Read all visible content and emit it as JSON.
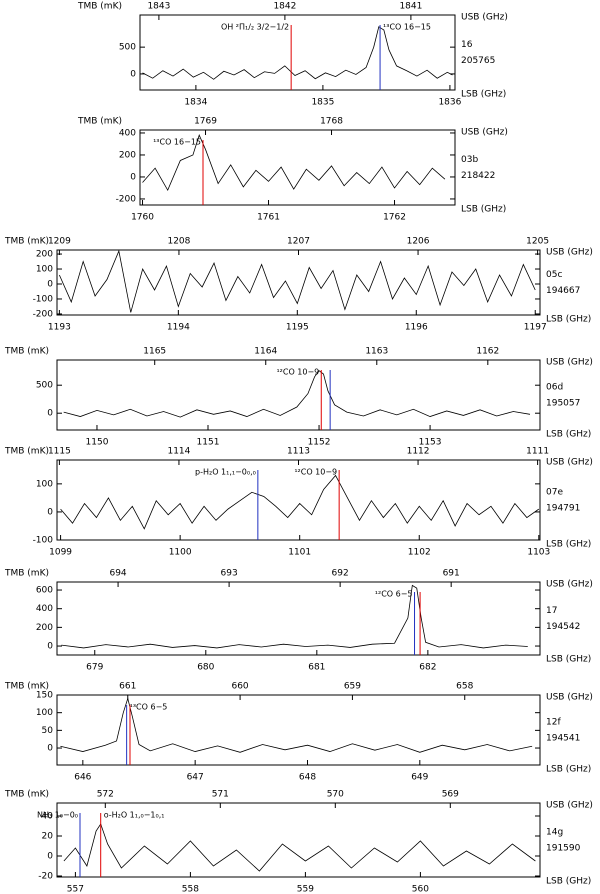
{
  "chart_data": [
    {
      "type": "line",
      "ylabel": "TMB (mK)",
      "x2label": "USB (GHz)",
      "xlabel": "LSB (GHz)",
      "id": "16",
      "obsid": "205765",
      "xlim": [
        1833.56,
        1836.04
      ],
      "xticks": [
        1834,
        1835,
        1836
      ],
      "x2lim": [
        1843.15,
        1840.65
      ],
      "x2ticks": [
        1843,
        1842,
        1841
      ],
      "ylim": [
        -300,
        1100
      ],
      "yticks": [
        0,
        500
      ],
      "series": [
        {
          "color": "#000000",
          "x": [
            1833.58,
            1833.66,
            1833.74,
            1833.82,
            1833.9,
            1833.98,
            1834.06,
            1834.14,
            1834.22,
            1834.3,
            1834.38,
            1834.46,
            1834.54,
            1834.62,
            1834.7,
            1834.78,
            1834.86,
            1834.94,
            1835.02,
            1835.1,
            1835.18,
            1835.26,
            1835.34,
            1835.4,
            1835.44,
            1835.48,
            1835.52,
            1835.58,
            1835.66,
            1835.74,
            1835.82,
            1835.9,
            1835.98,
            1836.02
          ],
          "values": [
            20,
            -80,
            60,
            -40,
            90,
            -60,
            30,
            -100,
            50,
            -20,
            80,
            -70,
            40,
            10,
            150,
            -30,
            60,
            -90,
            20,
            -50,
            70,
            -10,
            120,
            500,
            880,
            820,
            450,
            150,
            60,
            -40,
            70,
            -80,
            30,
            -20
          ]
        }
      ],
      "markers": [
        {
          "label": "OH ²Π₁/₂ 3/2−1/2",
          "color": "#e00000",
          "x": 1834.75,
          "side": "left"
        },
        {
          "label": "¹³CO 16−15",
          "color": "#2030c0",
          "x": 1835.45,
          "side": "right"
        }
      ]
    },
    {
      "type": "line",
      "ylabel": "TMB (mK)",
      "x2label": "USB (GHz)",
      "xlabel": "LSB (GHz)",
      "id": "03b",
      "obsid": "218422",
      "xlim": [
        1759.98,
        1762.48
      ],
      "xticks": [
        1760,
        1761,
        1762
      ],
      "x2lim": [
        1769.52,
        1767.02
      ],
      "x2ticks": [
        1769,
        1768
      ],
      "ylim": [
        -255,
        427
      ],
      "yticks": [
        -200,
        0,
        200,
        400
      ],
      "series": [
        {
          "color": "#000000",
          "x": [
            1760.0,
            1760.1,
            1760.2,
            1760.3,
            1760.4,
            1760.45,
            1760.5,
            1760.6,
            1760.7,
            1760.8,
            1760.9,
            1761.0,
            1761.1,
            1761.2,
            1761.3,
            1761.4,
            1761.5,
            1761.6,
            1761.7,
            1761.8,
            1761.9,
            1762.0,
            1762.1,
            1762.2,
            1762.3,
            1762.4
          ],
          "values": [
            -50,
            80,
            -120,
            150,
            200,
            380,
            250,
            -60,
            110,
            -90,
            60,
            -40,
            90,
            -110,
            70,
            -30,
            100,
            -80,
            40,
            -60,
            90,
            -100,
            50,
            -70,
            80,
            -20
          ]
        }
      ],
      "markers": [
        {
          "label": "¹³CO 16−15",
          "color": "#e00000",
          "x": 1760.48,
          "side": "left"
        }
      ]
    },
    {
      "type": "line",
      "ylabel": "TMB (mK)",
      "x2label": "USB (GHz)",
      "xlabel": "LSB (GHz)",
      "id": "05c",
      "obsid": "194667",
      "xlim": [
        1192.98,
        1197.04
      ],
      "xticks": [
        1193,
        1194,
        1195,
        1196,
        1197
      ],
      "x2lim": [
        1209.02,
        1204.98
      ],
      "x2ticks": [
        1209,
        1208,
        1207,
        1206,
        1205
      ],
      "ylim": [
        -207,
        227
      ],
      "yticks": [
        -200,
        -100,
        0,
        100,
        200
      ],
      "series": [
        {
          "color": "#000000",
          "x": [
            1193.0,
            1193.1,
            1193.2,
            1193.3,
            1193.4,
            1193.5,
            1193.6,
            1193.7,
            1193.8,
            1193.9,
            1194.0,
            1194.1,
            1194.2,
            1194.3,
            1194.4,
            1194.5,
            1194.6,
            1194.7,
            1194.8,
            1194.9,
            1195.0,
            1195.1,
            1195.2,
            1195.3,
            1195.4,
            1195.5,
            1195.6,
            1195.7,
            1195.8,
            1195.9,
            1196.0,
            1196.1,
            1196.2,
            1196.3,
            1196.4,
            1196.5,
            1196.6,
            1196.7,
            1196.8,
            1196.9,
            1197.0
          ],
          "values": [
            60,
            -120,
            150,
            -80,
            30,
            220,
            -190,
            100,
            -40,
            120,
            -150,
            70,
            -20,
            140,
            -110,
            50,
            -60,
            130,
            -90,
            20,
            -130,
            110,
            -30,
            90,
            -170,
            60,
            -50,
            150,
            -100,
            40,
            -70,
            120,
            -140,
            80,
            -10,
            100,
            -120,
            60,
            -80,
            130,
            -40
          ]
        }
      ],
      "markers": []
    },
    {
      "type": "line",
      "ylabel": "TMB (mK)",
      "x2label": "USB (GHz)",
      "xlabel": "LSB (GHz)",
      "id": "06d",
      "obsid": "195057",
      "xlim": [
        1149.64,
        1153.99
      ],
      "xticks": [
        1150,
        1151,
        1152,
        1153
      ],
      "x2lim": [
        1165.88,
        1161.53
      ],
      "x2ticks": [
        1165,
        1164,
        1163,
        1162
      ],
      "ylim": [
        -300,
        950
      ],
      "yticks": [
        0,
        500
      ],
      "series": [
        {
          "color": "#000000",
          "x": [
            1149.7,
            1149.85,
            1150.0,
            1150.15,
            1150.3,
            1150.45,
            1150.6,
            1150.75,
            1150.9,
            1151.05,
            1151.2,
            1151.35,
            1151.5,
            1151.65,
            1151.8,
            1151.9,
            1151.96,
            1152.0,
            1152.04,
            1152.08,
            1152.14,
            1152.25,
            1152.4,
            1152.55,
            1152.7,
            1152.85,
            1153.0,
            1153.15,
            1153.3,
            1153.45,
            1153.6,
            1153.75,
            1153.9
          ],
          "values": [
            20,
            -60,
            50,
            -30,
            70,
            -50,
            30,
            -70,
            60,
            -20,
            40,
            -60,
            70,
            -40,
            110,
            350,
            650,
            760,
            700,
            400,
            150,
            20,
            -50,
            60,
            -30,
            70,
            -60,
            40,
            -40,
            60,
            -50,
            30,
            -20
          ]
        }
      ],
      "markers": [
        {
          "label": "¹²CO 10−9",
          "color": "#e00000",
          "x": 1152.02,
          "side": "left"
        },
        {
          "color": "#2030c0",
          "x": 1152.1
        }
      ]
    },
    {
      "type": "line",
      "ylabel": "TMB (mK)",
      "x2label": "USB (GHz)",
      "xlabel": "LSB (GHz)",
      "id": "07e",
      "obsid": "194791",
      "xlim": [
        1098.97,
        1103.01
      ],
      "xticks": [
        1099,
        1100,
        1101,
        1102,
        1103
      ],
      "x2lim": [
        1115.02,
        1110.98
      ],
      "x2ticks": [
        1115,
        1114,
        1113,
        1112,
        1111
      ],
      "ylim": [
        -100,
        185
      ],
      "yticks": [
        -100,
        0,
        100
      ],
      "series": [
        {
          "color": "#000000",
          "x": [
            1099.0,
            1099.1,
            1099.2,
            1099.3,
            1099.4,
            1099.5,
            1099.6,
            1099.7,
            1099.8,
            1099.9,
            1100.0,
            1100.1,
            1100.2,
            1100.3,
            1100.4,
            1100.5,
            1100.6,
            1100.7,
            1100.8,
            1100.9,
            1101.0,
            1101.1,
            1101.2,
            1101.3,
            1101.4,
            1101.5,
            1101.6,
            1101.7,
            1101.8,
            1101.9,
            1102.0,
            1102.1,
            1102.2,
            1102.3,
            1102.4,
            1102.5,
            1102.6,
            1102.7,
            1102.8,
            1102.9,
            1103.0
          ],
          "values": [
            10,
            -40,
            30,
            -20,
            50,
            -30,
            20,
            -60,
            40,
            -10,
            30,
            -40,
            20,
            -30,
            10,
            40,
            70,
            55,
            20,
            -20,
            30,
            -10,
            80,
            130,
            50,
            -30,
            40,
            -20,
            30,
            -40,
            20,
            -30,
            40,
            -50,
            30,
            -10,
            20,
            -40,
            30,
            -20,
            10
          ]
        }
      ],
      "markers": [
        {
          "label": "p-H₂O 1₁,₁−0₀,₀",
          "color": "#2030c0",
          "x": 1100.65,
          "side": "left"
        },
        {
          "label": "¹²CO 10−9",
          "color": "#e00000",
          "x": 1101.33,
          "side": "left"
        }
      ]
    },
    {
      "type": "line",
      "ylabel": "TMB (mK)",
      "x2label": "USB (GHz)",
      "xlabel": "LSB (GHz)",
      "id": "17",
      "obsid": "194542",
      "xlim": [
        678.66,
        683.01
      ],
      "xticks": [
        679,
        680,
        681,
        682
      ],
      "x2lim": [
        694.55,
        690.2
      ],
      "x2ticks": [
        694,
        693,
        692,
        691
      ],
      "ylim": [
        -96,
        686
      ],
      "yticks": [
        0,
        200,
        400,
        600
      ],
      "series": [
        {
          "color": "#000000",
          "x": [
            678.7,
            678.9,
            679.1,
            679.3,
            679.5,
            679.7,
            679.9,
            680.1,
            680.3,
            680.5,
            680.7,
            680.9,
            681.1,
            681.3,
            681.5,
            681.7,
            681.82,
            681.86,
            681.9,
            681.94,
            681.98,
            682.1,
            682.3,
            682.5,
            682.7,
            682.9
          ],
          "values": [
            10,
            -20,
            15,
            -10,
            20,
            -15,
            5,
            -20,
            15,
            -10,
            20,
            -5,
            10,
            -15,
            20,
            30,
            300,
            650,
            620,
            300,
            40,
            -10,
            15,
            -20,
            10,
            -5
          ]
        }
      ],
      "markers": [
        {
          "label": "¹²CO 6−5",
          "color": "#2030c0",
          "x": 681.88,
          "side": "left"
        },
        {
          "color": "#e00000",
          "x": 681.93
        }
      ]
    },
    {
      "type": "line",
      "ylabel": "TMB (mK)",
      "x2label": "USB (GHz)",
      "xlabel": "LSB (GHz)",
      "id": "12f",
      "obsid": "194541",
      "xlim": [
        645.77,
        650.07
      ],
      "xticks": [
        646,
        647,
        648,
        649
      ],
      "x2lim": [
        661.63,
        657.33
      ],
      "x2ticks": [
        661,
        660,
        659,
        658
      ],
      "ylim": [
        -48,
        150
      ],
      "yticks": [
        0,
        50,
        100,
        150
      ],
      "series": [
        {
          "color": "#000000",
          "x": [
            645.8,
            646.0,
            646.2,
            646.3,
            646.36,
            646.4,
            646.44,
            646.5,
            646.6,
            646.8,
            647.0,
            647.2,
            647.4,
            647.6,
            647.8,
            648.0,
            648.2,
            648.4,
            648.6,
            648.8,
            649.0,
            649.2,
            649.4,
            649.6,
            649.8,
            650.0
          ],
          "values": [
            5,
            -10,
            8,
            20,
            100,
            140,
            90,
            10,
            -8,
            12,
            -10,
            6,
            -12,
            10,
            -5,
            8,
            -10,
            12,
            -6,
            10,
            -12,
            8,
            -5,
            10,
            -8,
            5
          ]
        }
      ],
      "markers": [
        {
          "label": "¹³CO 6−5",
          "color": "#2030c0",
          "x": 646.39,
          "side": "right"
        },
        {
          "color": "#e00000",
          "x": 646.42
        }
      ]
    },
    {
      "type": "line",
      "ylabel": "TMB (mK)",
      "x2label": "USB (GHz)",
      "xlabel": "LSB (GHz)",
      "id": "14g",
      "obsid": "191590",
      "xlim": [
        556.84,
        561.04
      ],
      "xticks": [
        557,
        558,
        559,
        560
      ],
      "x2lim": [
        572.42,
        568.22
      ],
      "x2ticks": [
        572,
        571,
        570,
        569
      ],
      "ylim": [
        -21,
        53
      ],
      "yticks": [
        -20,
        0,
        20,
        40
      ],
      "series": [
        {
          "color": "#000000",
          "x": [
            556.9,
            557.0,
            557.1,
            557.18,
            557.22,
            557.28,
            557.4,
            557.6,
            557.8,
            558.0,
            558.2,
            558.4,
            558.6,
            558.8,
            559.0,
            559.2,
            559.4,
            559.6,
            559.8,
            560.0,
            560.2,
            560.4,
            560.6,
            560.8,
            561.0
          ],
          "values": [
            -5,
            8,
            -10,
            25,
            32,
            12,
            -12,
            10,
            -8,
            15,
            -10,
            6,
            -15,
            12,
            -5,
            10,
            -12,
            8,
            -6,
            15,
            -10,
            5,
            -8,
            12,
            -5
          ]
        }
      ],
      "markers": [
        {
          "label": "NH₃ 1₀−0₀",
          "color": "#2030c0",
          "x": 557.04,
          "side": "left"
        },
        {
          "label": "o-H₂O 1₁,₀−1₀,₁",
          "color": "#e00000",
          "x": 557.22,
          "side": "right"
        }
      ]
    }
  ]
}
